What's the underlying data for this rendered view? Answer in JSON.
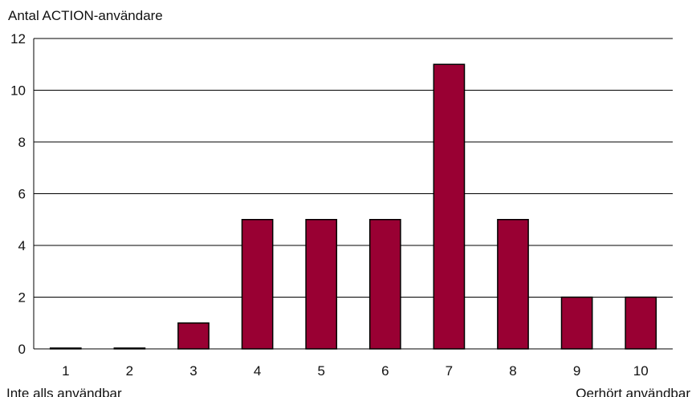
{
  "chart_data": {
    "type": "bar",
    "ylabel": "Antal ACTION-användare",
    "categories": [
      "1",
      "2",
      "3",
      "4",
      "5",
      "6",
      "7",
      "8",
      "9",
      "10"
    ],
    "series": [
      {
        "values": [
          0,
          0,
          1,
          5,
          5,
          5,
          11,
          5,
          2,
          2
        ]
      }
    ],
    "ylim": [
      0,
      12
    ],
    "yticks": [
      0,
      2,
      4,
      6,
      8,
      10,
      12
    ],
    "grid": true,
    "legend": "none",
    "scale_labels": {
      "low": "Inte alls användbar",
      "high": "Oerhört användbar"
    },
    "colors": {
      "bar": "#990033",
      "bar_outline": "#000000",
      "grid": "#000000"
    }
  }
}
